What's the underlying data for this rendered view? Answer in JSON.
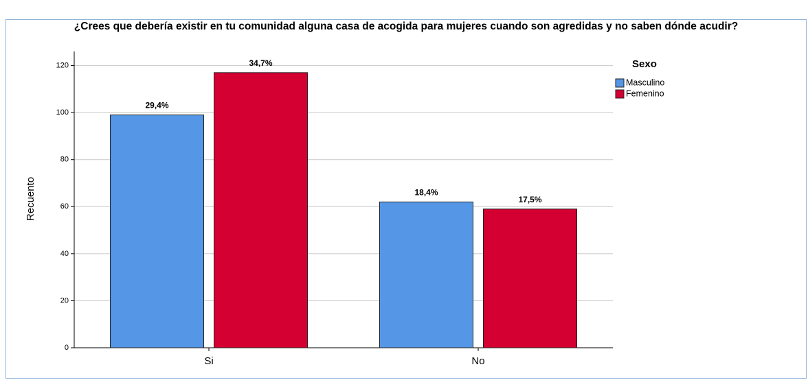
{
  "chart_data": {
    "type": "bar",
    "title": "¿Crees que debería existir en tu comunidad alguna casa de acogida para mujeres cuando son agredidas y no saben dónde acudir?",
    "y_label": "Recuento",
    "legend_title": "Sexo",
    "legend": "right",
    "grid": true,
    "categories": [
      "Si",
      "No"
    ],
    "series": [
      {
        "name": "Masculino",
        "color": "#5596e6",
        "values": [
          99,
          62
        ],
        "data_labels": [
          "29,4%",
          "18,4%"
        ]
      },
      {
        "name": "Femenino",
        "color": "#d50032",
        "values": [
          117,
          59
        ],
        "data_labels": [
          "34,7%",
          "17,5%"
        ]
      }
    ],
    "ylim": [
      0,
      126
    ],
    "yticks": [
      0,
      20,
      40,
      60,
      80,
      100,
      120
    ]
  }
}
